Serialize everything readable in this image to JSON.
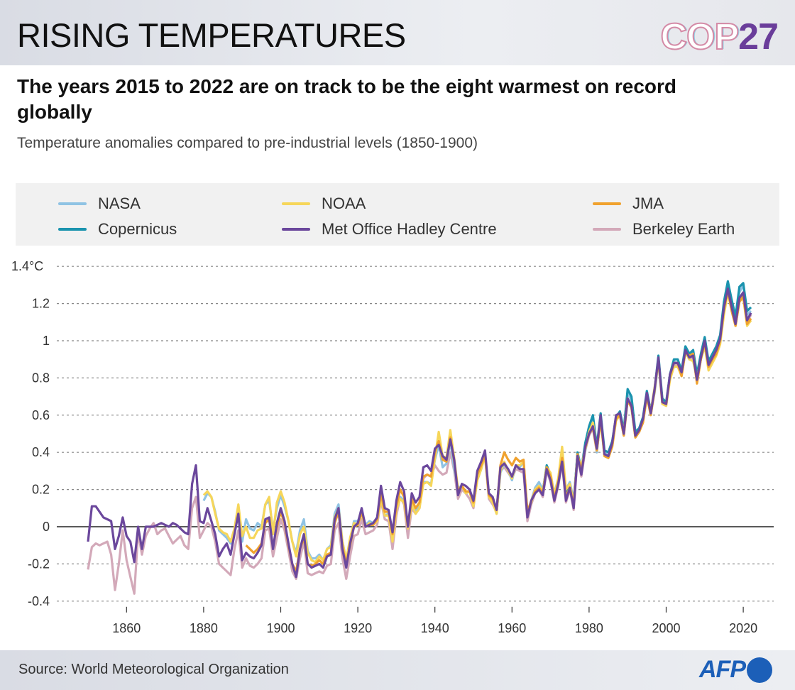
{
  "header": {
    "title": "RISING TEMPERATURES",
    "logo": "COP27",
    "logo_parts": [
      "COP",
      "27"
    ]
  },
  "subtitle": "The years 2015 to 2022 are on track to be the eight warmest on record globally",
  "description": "Temperature anomalies compared to pre-industrial levels (1850-1900)",
  "footer": {
    "source": "Source: World Meteorological Organization",
    "brand": "AFP"
  },
  "chart_data": {
    "type": "line",
    "title": "",
    "xlabel": "",
    "ylabel": "",
    "xlim": [
      1850,
      2022
    ],
    "ylim": [
      -0.4,
      1.4
    ],
    "yticks": [
      -0.4,
      -0.2,
      0,
      0.2,
      0.4,
      0.6,
      0.8,
      1,
      1.2,
      1.4
    ],
    "ytick_labels": [
      "-0.4",
      "-0.2",
      "0",
      "0.2",
      "0.4",
      "0.6",
      "0.8",
      "1",
      "1.2",
      "1.4°C"
    ],
    "xticks": [
      1860,
      1880,
      1900,
      1920,
      1940,
      1960,
      1980,
      2000,
      2020
    ],
    "xtick_labels": [
      "1860",
      "1880",
      "1900",
      "1920",
      "1940",
      "1960",
      "1980",
      "2000",
      "2020"
    ],
    "grid": "horizontal dotted",
    "legend_placement": "top",
    "series": [
      {
        "name": "Berkeley Earth",
        "color": "#d3a9b9",
        "start": 1850,
        "values": [
          -0.23,
          -0.11,
          -0.09,
          -0.1,
          -0.09,
          -0.08,
          -0.15,
          -0.34,
          -0.2,
          -0.02,
          -0.18,
          -0.27,
          -0.36,
          -0.03,
          -0.15,
          -0.05,
          -0.01,
          0.02,
          -0.04,
          -0.02,
          -0.01,
          -0.05,
          -0.09,
          -0.07,
          -0.05,
          -0.1,
          -0.12,
          0.1,
          0.16,
          -0.06,
          -0.02,
          0.02,
          0.0,
          -0.08,
          -0.2,
          -0.22,
          -0.24,
          -0.26,
          -0.12,
          -0.02,
          -0.22,
          -0.17,
          -0.21,
          -0.22,
          -0.2,
          -0.17,
          -0.02,
          -0.01,
          -0.16,
          -0.06,
          0.04,
          -0.02,
          -0.13,
          -0.24,
          -0.28,
          -0.17,
          -0.08,
          -0.25,
          -0.26,
          -0.25,
          -0.24,
          -0.25,
          -0.21,
          -0.2,
          -0.02,
          0.02,
          -0.17,
          -0.28,
          -0.16,
          -0.05,
          -0.04,
          0.04,
          -0.04,
          -0.03,
          -0.02,
          0.01,
          0.14,
          0.04,
          0.03,
          -0.12,
          0.06,
          0.16,
          0.12,
          -0.06,
          0.1,
          0.07,
          0.1,
          0.26,
          0.28,
          0.27,
          0.33,
          0.3,
          0.28,
          0.29,
          0.4,
          0.3,
          0.15,
          0.2,
          0.18,
          0.15,
          0.1,
          0.26,
          0.32,
          0.38,
          0.15,
          0.12,
          0.08,
          0.3,
          0.32,
          0.29,
          0.26,
          0.31,
          0.3,
          0.29,
          0.03,
          0.12,
          0.18,
          0.2,
          0.16,
          0.3,
          0.24,
          0.13,
          0.22,
          0.34,
          0.13,
          0.2,
          0.09,
          0.37,
          0.27,
          0.41,
          0.49,
          0.53,
          0.4,
          0.59,
          0.38,
          0.37,
          0.44,
          0.59,
          0.6,
          0.49,
          0.68,
          0.64,
          0.48,
          0.51,
          0.57,
          0.71,
          0.6,
          0.73,
          0.9,
          0.66,
          0.65,
          0.81,
          0.87,
          0.87,
          0.82,
          0.94,
          0.9,
          0.91,
          0.78,
          0.9,
          0.99,
          0.86,
          0.9,
          0.94,
          1.0,
          1.17,
          1.27,
          1.17,
          1.08,
          1.22,
          1.25,
          1.1,
          1.14
        ]
      },
      {
        "name": "NASA",
        "color": "#8fc3e4",
        "start": 1880,
        "values": [
          0.14,
          0.18,
          0.16,
          0.08,
          -0.02,
          -0.04,
          -0.06,
          -0.09,
          -0.02,
          0.1,
          -0.08,
          0.04,
          -0.01,
          -0.02,
          0.02,
          0.0,
          0.12,
          0.14,
          -0.02,
          0.1,
          0.17,
          0.11,
          0.03,
          -0.08,
          -0.14,
          -0.02,
          0.04,
          -0.13,
          -0.17,
          -0.17,
          -0.15,
          -0.18,
          -0.12,
          -0.1,
          0.07,
          0.12,
          -0.08,
          -0.18,
          -0.07,
          0.03,
          0.03,
          0.08,
          0.01,
          0.03,
          0.02,
          0.05,
          0.17,
          0.06,
          0.07,
          -0.06,
          0.1,
          0.16,
          0.14,
          0.0,
          0.13,
          0.08,
          0.11,
          0.24,
          0.24,
          0.23,
          0.36,
          0.44,
          0.32,
          0.34,
          0.46,
          0.31,
          0.21,
          0.22,
          0.18,
          0.19,
          0.12,
          0.25,
          0.31,
          0.39,
          0.17,
          0.14,
          0.07,
          0.29,
          0.34,
          0.3,
          0.25,
          0.33,
          0.32,
          0.35,
          0.07,
          0.14,
          0.21,
          0.24,
          0.2,
          0.31,
          0.28,
          0.18,
          0.26,
          0.4,
          0.2,
          0.24,
          0.14,
          0.39,
          0.32,
          0.41,
          0.52,
          0.58,
          0.4,
          0.59,
          0.4,
          0.38,
          0.44,
          0.58,
          0.62,
          0.52,
          0.72,
          0.68,
          0.5,
          0.53,
          0.58,
          0.71,
          0.63,
          0.72,
          0.89,
          0.68,
          0.66,
          0.8,
          0.89,
          0.88,
          0.82,
          0.95,
          0.91,
          0.94,
          0.79,
          0.92,
          1.0,
          0.86,
          0.91,
          0.95,
          1.01,
          1.17,
          1.3,
          1.2,
          1.11,
          1.26,
          1.3,
          1.14,
          1.16
        ]
      },
      {
        "name": "Copernicus",
        "color": "#1a93ae",
        "start": 1967,
        "values": [
          0.21,
          0.19,
          0.33,
          0.28,
          0.16,
          0.25,
          0.39,
          0.17,
          0.23,
          0.13,
          0.4,
          0.31,
          0.45,
          0.54,
          0.6,
          0.43,
          0.61,
          0.41,
          0.4,
          0.46,
          0.59,
          0.62,
          0.52,
          0.74,
          0.7,
          0.51,
          0.53,
          0.59,
          0.73,
          0.62,
          0.74,
          0.92,
          0.69,
          0.67,
          0.82,
          0.9,
          0.9,
          0.84,
          0.97,
          0.93,
          0.95,
          0.82,
          0.93,
          1.02,
          0.89,
          0.93,
          0.97,
          1.03,
          1.21,
          1.32,
          1.22,
          1.13,
          1.29,
          1.31,
          1.16,
          1.18
        ]
      },
      {
        "name": "NOAA",
        "color": "#f6d65a",
        "start": 1880,
        "values": [
          0.17,
          0.19,
          0.16,
          0.07,
          -0.01,
          -0.03,
          -0.04,
          -0.08,
          -0.01,
          0.12,
          -0.05,
          0.0,
          -0.06,
          -0.06,
          -0.02,
          -0.01,
          0.12,
          0.16,
          -0.04,
          0.13,
          0.19,
          0.13,
          0.03,
          -0.08,
          -0.16,
          -0.04,
          0.0,
          -0.14,
          -0.18,
          -0.19,
          -0.16,
          -0.18,
          -0.12,
          -0.11,
          0.05,
          0.1,
          -0.08,
          -0.18,
          -0.06,
          0.02,
          0.01,
          0.07,
          0.0,
          0.02,
          0.01,
          0.03,
          0.15,
          0.06,
          0.06,
          -0.08,
          0.09,
          0.15,
          0.13,
          -0.01,
          0.12,
          0.07,
          0.1,
          0.23,
          0.24,
          0.22,
          0.37,
          0.51,
          0.38,
          0.37,
          0.52,
          0.37,
          0.2,
          0.22,
          0.18,
          0.19,
          0.11,
          0.25,
          0.31,
          0.38,
          0.16,
          0.13,
          0.07,
          0.3,
          0.35,
          0.3,
          0.26,
          0.33,
          0.33,
          0.35,
          0.08,
          0.13,
          0.2,
          0.22,
          0.19,
          0.32,
          0.29,
          0.17,
          0.26,
          0.43,
          0.2,
          0.23,
          0.13,
          0.38,
          0.32,
          0.42,
          0.51,
          0.56,
          0.41,
          0.57,
          0.38,
          0.37,
          0.43,
          0.57,
          0.6,
          0.51,
          0.69,
          0.65,
          0.48,
          0.51,
          0.57,
          0.7,
          0.62,
          0.75,
          0.89,
          0.66,
          0.65,
          0.79,
          0.86,
          0.86,
          0.81,
          0.94,
          0.9,
          0.89,
          0.8,
          0.9,
          0.97,
          0.84,
          0.88,
          0.92,
          0.98,
          1.14,
          1.26,
          1.16,
          1.08,
          1.21,
          1.23,
          1.08,
          1.11
        ]
      },
      {
        "name": "JMA",
        "color": "#f0a22e",
        "start": 1891,
        "values": [
          -0.1,
          -0.12,
          -0.14,
          -0.12,
          -0.09,
          0.02,
          0.04,
          -0.11,
          0.0,
          0.08,
          0.02,
          -0.1,
          -0.2,
          -0.24,
          -0.12,
          -0.06,
          -0.2,
          -0.21,
          -0.2,
          -0.18,
          -0.2,
          -0.15,
          -0.14,
          0.02,
          0.08,
          -0.11,
          -0.2,
          -0.1,
          0.0,
          0.01,
          0.08,
          0.0,
          0.01,
          0.01,
          0.04,
          0.18,
          0.08,
          0.08,
          -0.04,
          0.11,
          0.2,
          0.16,
          0.0,
          0.15,
          0.1,
          0.13,
          0.27,
          0.28,
          0.27,
          0.4,
          0.46,
          0.36,
          0.35,
          0.48,
          0.35,
          0.19,
          0.22,
          0.19,
          0.19,
          0.13,
          0.28,
          0.33,
          0.39,
          0.17,
          0.15,
          0.09,
          0.33,
          0.4,
          0.36,
          0.33,
          0.37,
          0.35,
          0.36,
          0.08,
          0.14,
          0.19,
          0.21,
          0.18,
          0.32,
          0.27,
          0.15,
          0.24,
          0.37,
          0.16,
          0.21,
          0.11,
          0.39,
          0.3,
          0.42,
          0.5,
          0.53,
          0.41,
          0.58,
          0.38,
          0.37,
          0.43,
          0.58,
          0.6,
          0.49,
          0.68,
          0.64,
          0.48,
          0.51,
          0.56,
          0.7,
          0.6,
          0.73,
          0.9,
          0.67,
          0.66,
          0.81,
          0.88,
          0.88,
          0.81,
          0.94,
          0.92,
          0.93,
          0.77,
          0.9,
          0.99,
          0.86,
          0.9,
          0.93,
          1.0,
          1.17,
          1.27,
          1.16,
          1.08,
          1.21,
          1.24,
          1.09,
          1.12
        ]
      },
      {
        "name": "Met Office Hadley Centre",
        "color": "#6b479c",
        "start": 1850,
        "values": [
          -0.08,
          0.11,
          0.11,
          0.08,
          0.05,
          0.04,
          0.03,
          -0.12,
          -0.05,
          0.05,
          -0.05,
          -0.08,
          -0.19,
          0.0,
          -0.12,
          0.0,
          0.0,
          0.0,
          0.01,
          0.02,
          0.01,
          0.0,
          0.02,
          0.01,
          -0.01,
          -0.03,
          -0.04,
          0.23,
          0.33,
          0.03,
          0.02,
          0.1,
          0.03,
          -0.04,
          -0.16,
          -0.12,
          -0.09,
          -0.15,
          -0.04,
          0.07,
          -0.18,
          -0.14,
          -0.16,
          -0.17,
          -0.14,
          -0.1,
          0.04,
          0.05,
          -0.12,
          0.02,
          0.1,
          0.03,
          -0.09,
          -0.2,
          -0.27,
          -0.12,
          -0.04,
          -0.2,
          -0.22,
          -0.21,
          -0.2,
          -0.22,
          -0.16,
          -0.15,
          0.04,
          0.1,
          -0.12,
          -0.22,
          -0.09,
          0.0,
          0.02,
          0.1,
          0.0,
          0.01,
          0.02,
          0.05,
          0.22,
          0.1,
          0.09,
          -0.03,
          0.14,
          0.24,
          0.19,
          0.0,
          0.18,
          0.13,
          0.16,
          0.32,
          0.33,
          0.3,
          0.42,
          0.44,
          0.38,
          0.36,
          0.47,
          0.36,
          0.17,
          0.23,
          0.22,
          0.2,
          0.14,
          0.3,
          0.35,
          0.41,
          0.18,
          0.16,
          0.09,
          0.32,
          0.34,
          0.31,
          0.27,
          0.33,
          0.31,
          0.31,
          0.05,
          0.14,
          0.18,
          0.2,
          0.17,
          0.31,
          0.25,
          0.14,
          0.23,
          0.35,
          0.14,
          0.21,
          0.1,
          0.38,
          0.28,
          0.43,
          0.5,
          0.54,
          0.42,
          0.6,
          0.39,
          0.38,
          0.45,
          0.6,
          0.61,
          0.5,
          0.69,
          0.65,
          0.49,
          0.52,
          0.58,
          0.72,
          0.61,
          0.74,
          0.91,
          0.67,
          0.66,
          0.82,
          0.88,
          0.88,
          0.83,
          0.95,
          0.91,
          0.92,
          0.79,
          0.91,
          1.0,
          0.87,
          0.91,
          0.95,
          1.01,
          1.18,
          1.28,
          1.18,
          1.09,
          1.23,
          1.26,
          1.11,
          1.15
        ]
      }
    ]
  },
  "legend": [
    {
      "label": "NASA",
      "color": "#8fc3e4"
    },
    {
      "label": "NOAA",
      "color": "#f6d65a"
    },
    {
      "label": "JMA",
      "color": "#f0a22e"
    },
    {
      "label": "Copernicus",
      "color": "#1a93ae"
    },
    {
      "label": "Met Office Hadley Centre",
      "color": "#6b479c"
    },
    {
      "label": "Berkeley Earth",
      "color": "#d3a9b9"
    }
  ]
}
